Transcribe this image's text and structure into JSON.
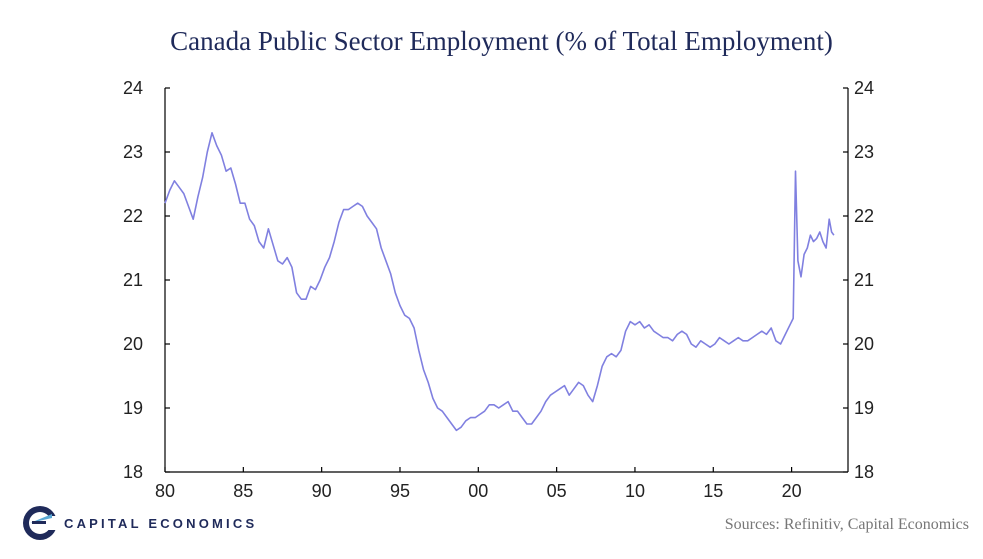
{
  "chart_data": {
    "type": "line",
    "title": "Canada Public Sector Employment (% of Total Employment)",
    "xlabel": "",
    "ylabel": "",
    "xlim": [
      1980,
      2023.6
    ],
    "ylim": [
      18,
      24
    ],
    "x_ticks": [
      1980,
      1985,
      1990,
      1995,
      2000,
      2005,
      2010,
      2015,
      2020
    ],
    "x_tick_labels": [
      "80",
      "85",
      "90",
      "95",
      "00",
      "05",
      "10",
      "15",
      "20"
    ],
    "y_ticks": [
      18,
      19,
      20,
      21,
      22,
      23,
      24
    ],
    "y_tick_labels": [
      "18",
      "19",
      "20",
      "21",
      "22",
      "23",
      "24"
    ],
    "grid": false,
    "right_axis": true,
    "series": [
      {
        "color": "#8080e0",
        "points": [
          [
            1980.0,
            22.2
          ],
          [
            1980.3,
            22.4
          ],
          [
            1980.6,
            22.55
          ],
          [
            1980.9,
            22.45
          ],
          [
            1981.2,
            22.35
          ],
          [
            1981.5,
            22.15
          ],
          [
            1981.8,
            21.95
          ],
          [
            1982.1,
            22.3
          ],
          [
            1982.4,
            22.6
          ],
          [
            1982.7,
            23.0
          ],
          [
            1983.0,
            23.3
          ],
          [
            1983.3,
            23.1
          ],
          [
            1983.6,
            22.95
          ],
          [
            1983.9,
            22.7
          ],
          [
            1984.2,
            22.75
          ],
          [
            1984.5,
            22.5
          ],
          [
            1984.8,
            22.2
          ],
          [
            1985.1,
            22.2
          ],
          [
            1985.4,
            21.95
          ],
          [
            1985.7,
            21.85
          ],
          [
            1986.0,
            21.6
          ],
          [
            1986.3,
            21.5
          ],
          [
            1986.6,
            21.8
          ],
          [
            1986.9,
            21.55
          ],
          [
            1987.2,
            21.3
          ],
          [
            1987.5,
            21.25
          ],
          [
            1987.8,
            21.35
          ],
          [
            1988.1,
            21.2
          ],
          [
            1988.4,
            20.8
          ],
          [
            1988.7,
            20.7
          ],
          [
            1989.0,
            20.7
          ],
          [
            1989.3,
            20.9
          ],
          [
            1989.6,
            20.85
          ],
          [
            1989.9,
            21.0
          ],
          [
            1990.2,
            21.2
          ],
          [
            1990.5,
            21.35
          ],
          [
            1990.8,
            21.6
          ],
          [
            1991.1,
            21.9
          ],
          [
            1991.4,
            22.1
          ],
          [
            1991.7,
            22.1
          ],
          [
            1992.0,
            22.15
          ],
          [
            1992.3,
            22.2
          ],
          [
            1992.6,
            22.15
          ],
          [
            1992.9,
            22.0
          ],
          [
            1993.2,
            21.9
          ],
          [
            1993.5,
            21.8
          ],
          [
            1993.8,
            21.5
          ],
          [
            1994.1,
            21.3
          ],
          [
            1994.4,
            21.1
          ],
          [
            1994.7,
            20.8
          ],
          [
            1995.0,
            20.6
          ],
          [
            1995.3,
            20.45
          ],
          [
            1995.6,
            20.4
          ],
          [
            1995.9,
            20.25
          ],
          [
            1996.2,
            19.9
          ],
          [
            1996.5,
            19.6
          ],
          [
            1996.8,
            19.4
          ],
          [
            1997.1,
            19.15
          ],
          [
            1997.4,
            19.0
          ],
          [
            1997.7,
            18.95
          ],
          [
            1998.0,
            18.85
          ],
          [
            1998.3,
            18.75
          ],
          [
            1998.6,
            18.65
          ],
          [
            1998.9,
            18.7
          ],
          [
            1999.2,
            18.8
          ],
          [
            1999.5,
            18.85
          ],
          [
            1999.8,
            18.85
          ],
          [
            2000.1,
            18.9
          ],
          [
            2000.4,
            18.95
          ],
          [
            2000.7,
            19.05
          ],
          [
            2001.0,
            19.05
          ],
          [
            2001.3,
            19.0
          ],
          [
            2001.6,
            19.05
          ],
          [
            2001.9,
            19.1
          ],
          [
            2002.2,
            18.95
          ],
          [
            2002.5,
            18.95
          ],
          [
            2002.8,
            18.85
          ],
          [
            2003.1,
            18.75
          ],
          [
            2003.4,
            18.75
          ],
          [
            2003.7,
            18.85
          ],
          [
            2004.0,
            18.95
          ],
          [
            2004.3,
            19.1
          ],
          [
            2004.6,
            19.2
          ],
          [
            2004.9,
            19.25
          ],
          [
            2005.2,
            19.3
          ],
          [
            2005.5,
            19.35
          ],
          [
            2005.8,
            19.2
          ],
          [
            2006.1,
            19.3
          ],
          [
            2006.4,
            19.4
          ],
          [
            2006.7,
            19.35
          ],
          [
            2007.0,
            19.2
          ],
          [
            2007.3,
            19.1
          ],
          [
            2007.6,
            19.35
          ],
          [
            2007.9,
            19.65
          ],
          [
            2008.2,
            19.8
          ],
          [
            2008.5,
            19.85
          ],
          [
            2008.8,
            19.8
          ],
          [
            2009.1,
            19.9
          ],
          [
            2009.4,
            20.2
          ],
          [
            2009.7,
            20.35
          ],
          [
            2010.0,
            20.3
          ],
          [
            2010.3,
            20.35
          ],
          [
            2010.6,
            20.25
          ],
          [
            2010.9,
            20.3
          ],
          [
            2011.2,
            20.2
          ],
          [
            2011.5,
            20.15
          ],
          [
            2011.8,
            20.1
          ],
          [
            2012.1,
            20.1
          ],
          [
            2012.4,
            20.05
          ],
          [
            2012.7,
            20.15
          ],
          [
            2013.0,
            20.2
          ],
          [
            2013.3,
            20.15
          ],
          [
            2013.6,
            20.0
          ],
          [
            2013.9,
            19.95
          ],
          [
            2014.2,
            20.05
          ],
          [
            2014.5,
            20.0
          ],
          [
            2014.8,
            19.95
          ],
          [
            2015.1,
            20.0
          ],
          [
            2015.4,
            20.1
          ],
          [
            2015.7,
            20.05
          ],
          [
            2016.0,
            20.0
          ],
          [
            2016.3,
            20.05
          ],
          [
            2016.6,
            20.1
          ],
          [
            2016.9,
            20.05
          ],
          [
            2017.2,
            20.05
          ],
          [
            2017.5,
            20.1
          ],
          [
            2017.8,
            20.15
          ],
          [
            2018.1,
            20.2
          ],
          [
            2018.4,
            20.15
          ],
          [
            2018.7,
            20.25
          ],
          [
            2019.0,
            20.05
          ],
          [
            2019.3,
            20.0
          ],
          [
            2019.6,
            20.15
          ],
          [
            2019.9,
            20.3
          ],
          [
            2020.1,
            20.4
          ],
          [
            2020.25,
            22.7
          ],
          [
            2020.4,
            21.3
          ],
          [
            2020.6,
            21.05
          ],
          [
            2020.8,
            21.4
          ],
          [
            2021.0,
            21.5
          ],
          [
            2021.2,
            21.7
          ],
          [
            2021.4,
            21.6
          ],
          [
            2021.6,
            21.65
          ],
          [
            2021.8,
            21.75
          ],
          [
            2022.0,
            21.6
          ],
          [
            2022.2,
            21.5
          ],
          [
            2022.4,
            21.95
          ],
          [
            2022.55,
            21.75
          ],
          [
            2022.7,
            21.7
          ]
        ]
      }
    ]
  },
  "logo": {
    "text": "CAPITAL ECONOMICS"
  },
  "footer": {
    "sources": "Sources:  Refinitiv,  Capital Economics"
  }
}
